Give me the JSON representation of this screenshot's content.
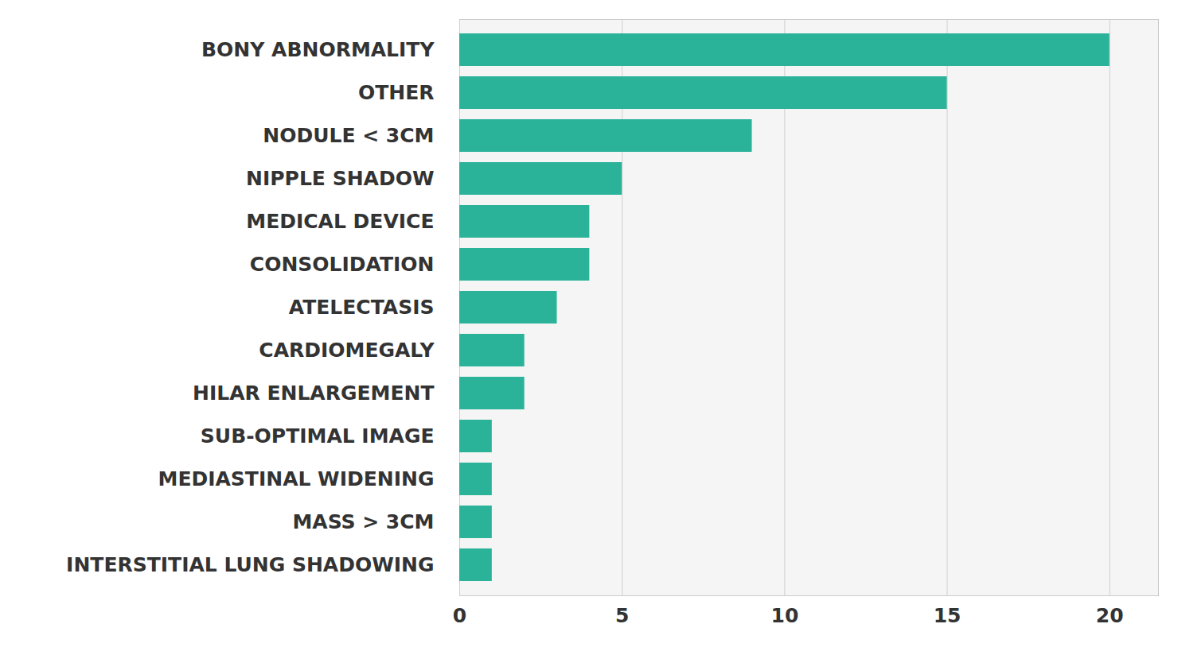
{
  "chart_data": {
    "type": "bar",
    "orientation": "horizontal",
    "categories": [
      "BONY ABNORMALITY",
      "OTHER",
      "NODULE < 3CM",
      "NIPPLE SHADOW",
      "MEDICAL DEVICE",
      "CONSOLIDATION",
      "ATELECTASIS",
      "CARDIOMEGALY",
      "HILAR ENLARGEMENT",
      "SUB-OPTIMAL IMAGE",
      "MEDIASTINAL WIDENING",
      "MASS > 3CM",
      "INTERSTITIAL LUNG SHADOWING"
    ],
    "values": [
      20,
      15,
      9,
      5,
      4,
      4,
      3,
      2,
      2,
      1,
      1,
      1,
      1
    ],
    "color": "#2bb39a",
    "xlim": [
      0,
      21.5
    ],
    "xticks": [
      0,
      5,
      10,
      15,
      20
    ],
    "grid": true
  }
}
